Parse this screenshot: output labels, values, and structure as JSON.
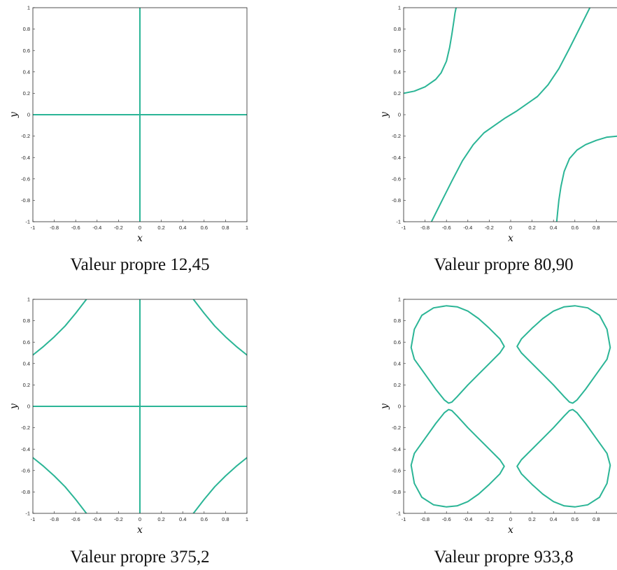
{
  "figure": {
    "curve_color": "#2bb596",
    "panels": [
      {
        "caption": "Valeur propre 12,45",
        "xlabel": "x",
        "ylabel": "y"
      },
      {
        "caption": "Valeur propre 80,90",
        "xlabel": "x",
        "ylabel": "y"
      },
      {
        "caption": "Valeur propre 375,2",
        "xlabel": "x",
        "ylabel": "y"
      },
      {
        "caption": "Valeur propre 933,8",
        "xlabel": "x",
        "ylabel": "y"
      }
    ]
  },
  "chart_data": [
    {
      "type": "line",
      "title": "",
      "xlabel": "x",
      "ylabel": "y",
      "xlim": [
        -1,
        1
      ],
      "ylim": [
        -1,
        1
      ],
      "xticks": [
        "-1",
        "-0.8",
        "-0.6",
        "-0.4",
        "-0.2",
        "0",
        "0.2",
        "0.4",
        "0.6",
        "0.8",
        "1"
      ],
      "yticks": [
        "-1",
        "-0.8",
        "-0.6",
        "-0.4",
        "-0.2",
        "0",
        "0.2",
        "0.4",
        "0.6",
        "0.8",
        "1"
      ],
      "series": [
        {
          "x": [
            -1,
            1
          ],
          "y": [
            0,
            0
          ]
        },
        {
          "x": [
            0,
            0
          ],
          "y": [
            -1,
            1
          ]
        }
      ]
    },
    {
      "type": "line",
      "title": "",
      "xlabel": "x",
      "ylabel": "y",
      "xlim": [
        -1,
        1
      ],
      "ylim": [
        -1,
        1
      ],
      "xticks": [
        "-1",
        "-0.8",
        "-0.6",
        "-0.4",
        "-0.2",
        "0",
        "0.2",
        "0.4",
        "0.6",
        "0.8"
      ],
      "yticks": [
        "-1",
        "-0.8",
        "-0.6",
        "-0.4",
        "-0.2",
        "0",
        "0.2",
        "0.4",
        "0.6",
        "0.8",
        "1"
      ],
      "series": [
        {
          "x": [
            -1,
            -0.9,
            -0.8,
            -0.7,
            -0.65,
            -0.6,
            -0.57,
            -0.55,
            -0.53,
            -0.52,
            -0.51
          ],
          "y": [
            0.2,
            0.22,
            0.26,
            0.33,
            0.39,
            0.5,
            0.63,
            0.75,
            0.88,
            0.95,
            1
          ]
        },
        {
          "x": [
            -0.74,
            -0.65,
            -0.55,
            -0.45,
            -0.35,
            -0.25,
            -0.15,
            -0.05,
            0,
            0.05,
            0.15,
            0.25,
            0.35,
            0.45,
            0.55,
            0.65,
            0.74
          ],
          "y": [
            -1,
            -0.82,
            -0.62,
            -0.43,
            -0.28,
            -0.17,
            -0.1,
            -0.03,
            0,
            0.03,
            0.1,
            0.17,
            0.28,
            0.43,
            0.62,
            0.82,
            1
          ]
        },
        {
          "x": [
            0.43,
            0.44,
            0.45,
            0.47,
            0.5,
            0.55,
            0.62,
            0.7,
            0.8,
            0.9,
            1
          ],
          "y": [
            -1,
            -0.9,
            -0.8,
            -0.67,
            -0.53,
            -0.41,
            -0.33,
            -0.28,
            -0.24,
            -0.21,
            -0.2
          ]
        }
      ]
    },
    {
      "type": "line",
      "title": "",
      "xlabel": "x",
      "ylabel": "y",
      "xlim": [
        -1,
        1
      ],
      "ylim": [
        -1,
        1
      ],
      "xticks": [
        "-1",
        "-0.8",
        "-0.6",
        "-0.4",
        "-0.2",
        "0",
        "0.2",
        "0.4",
        "0.6",
        "0.8",
        "1"
      ],
      "yticks": [
        "-1",
        "-0.8",
        "-0.6",
        "-0.4",
        "-0.2",
        "0",
        "0.2",
        "0.4",
        "0.6",
        "0.8",
        "1"
      ],
      "series": [
        {
          "x": [
            -1,
            1
          ],
          "y": [
            0,
            0
          ]
        },
        {
          "x": [
            0,
            0
          ],
          "y": [
            -1,
            1
          ]
        },
        {
          "x": [
            -1,
            -0.9,
            -0.8,
            -0.7,
            -0.6,
            -0.5
          ],
          "y": [
            0.48,
            0.56,
            0.65,
            0.75,
            0.87,
            1
          ]
        },
        {
          "x": [
            0.5,
            0.6,
            0.7,
            0.8,
            0.9,
            1
          ],
          "y": [
            1,
            0.87,
            0.75,
            0.65,
            0.56,
            0.48
          ]
        },
        {
          "x": [
            -1,
            -0.9,
            -0.8,
            -0.7,
            -0.6,
            -0.5
          ],
          "y": [
            -0.48,
            -0.56,
            -0.65,
            -0.75,
            -0.87,
            -1
          ]
        },
        {
          "x": [
            0.5,
            0.6,
            0.7,
            0.8,
            0.9,
            1
          ],
          "y": [
            -1,
            -0.87,
            -0.75,
            -0.65,
            -0.56,
            -0.48
          ]
        }
      ]
    },
    {
      "type": "line",
      "title": "",
      "xlabel": "x",
      "ylabel": "y",
      "xlim": [
        -1,
        1
      ],
      "ylim": [
        -1,
        1
      ],
      "xticks": [
        "-1",
        "-0.8",
        "-0.6",
        "-0.4",
        "-0.2",
        "0",
        "0.2",
        "0.4",
        "0.6",
        "0.8"
      ],
      "yticks": [
        "-1",
        "-0.8",
        "-0.6",
        "-0.4",
        "-0.2",
        "0",
        "0.2",
        "0.4",
        "0.6",
        "0.8",
        "1"
      ],
      "series": [
        {
          "x": [
            -0.93,
            -0.9,
            -0.83,
            -0.72,
            -0.6,
            -0.5,
            -0.4,
            -0.3,
            -0.2,
            -0.1,
            -0.06,
            -0.1,
            -0.2,
            -0.3,
            -0.4,
            -0.5,
            -0.55,
            -0.58,
            -0.62,
            -0.7,
            -0.8,
            -0.9,
            -0.93
          ],
          "y": [
            0.55,
            0.72,
            0.85,
            0.92,
            0.94,
            0.93,
            0.89,
            0.82,
            0.73,
            0.63,
            0.56,
            0.5,
            0.4,
            0.3,
            0.2,
            0.09,
            0.04,
            0.03,
            0.06,
            0.16,
            0.3,
            0.44,
            0.55
          ]
        },
        {
          "x": [
            0.93,
            0.9,
            0.83,
            0.72,
            0.6,
            0.5,
            0.4,
            0.3,
            0.2,
            0.1,
            0.06,
            0.1,
            0.2,
            0.3,
            0.4,
            0.5,
            0.55,
            0.58,
            0.62,
            0.7,
            0.8,
            0.9,
            0.93
          ],
          "y": [
            0.55,
            0.72,
            0.85,
            0.92,
            0.94,
            0.93,
            0.89,
            0.82,
            0.73,
            0.63,
            0.56,
            0.5,
            0.4,
            0.3,
            0.2,
            0.09,
            0.04,
            0.03,
            0.06,
            0.16,
            0.3,
            0.44,
            0.55
          ]
        },
        {
          "x": [
            -0.93,
            -0.9,
            -0.83,
            -0.72,
            -0.6,
            -0.5,
            -0.4,
            -0.3,
            -0.2,
            -0.1,
            -0.06,
            -0.1,
            -0.2,
            -0.3,
            -0.4,
            -0.5,
            -0.55,
            -0.58,
            -0.62,
            -0.7,
            -0.8,
            -0.9,
            -0.93
          ],
          "y": [
            -0.55,
            -0.72,
            -0.85,
            -0.92,
            -0.94,
            -0.93,
            -0.89,
            -0.82,
            -0.73,
            -0.63,
            -0.56,
            -0.5,
            -0.4,
            -0.3,
            -0.2,
            -0.09,
            -0.04,
            -0.03,
            -0.06,
            -0.16,
            -0.3,
            -0.44,
            -0.55
          ]
        },
        {
          "x": [
            0.93,
            0.9,
            0.83,
            0.72,
            0.6,
            0.5,
            0.4,
            0.3,
            0.2,
            0.1,
            0.06,
            0.1,
            0.2,
            0.3,
            0.4,
            0.5,
            0.55,
            0.58,
            0.62,
            0.7,
            0.8,
            0.9,
            0.93
          ],
          "y": [
            -0.55,
            -0.72,
            -0.85,
            -0.92,
            -0.94,
            -0.93,
            -0.89,
            -0.82,
            -0.73,
            -0.63,
            -0.56,
            -0.5,
            -0.4,
            -0.3,
            -0.2,
            -0.09,
            -0.04,
            -0.03,
            -0.06,
            -0.16,
            -0.3,
            -0.44,
            -0.55
          ]
        }
      ]
    }
  ]
}
